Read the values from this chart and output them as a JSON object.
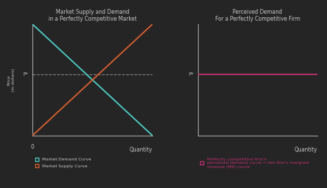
{
  "bg_color": "#252525",
  "spine_color": "#aaaaaa",
  "text_color": "#c8c8c8",
  "title_left": "Market Supply and Demand\nin a Perfectly Competitive Market",
  "title_right": "Perceived Demand\nFor a Perfectly Competitive Firm",
  "xlabel": "Quantity",
  "ylabel": "Price\n(in dollars)",
  "demand_color": "#4ecdc4",
  "supply_color": "#d95f30",
  "firm_demand_color": "#c03070",
  "dashed_color": "#888888",
  "p_star_label": "P*",
  "zero_label": "0",
  "legend_demand_label": "Market Demand Curve",
  "legend_supply_label": "Market Supply Curve",
  "legend_firm_label": "Perfectly competitive firm's\nperceived demand curve = the firm's marginal\nrevenue (MR) curve",
  "xlim": [
    0,
    10
  ],
  "ylim": [
    0,
    10
  ],
  "p_star_y": 5.5,
  "intersection_x": 5.5
}
